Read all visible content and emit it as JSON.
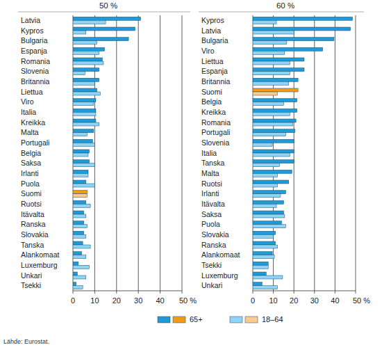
{
  "chart_data": [
    {
      "type": "bar",
      "title": "50 %",
      "orientation": "horizontal",
      "grid": true,
      "legend": "bottom",
      "categories": [
        "Latvia",
        "Kypros",
        "Bulgaria",
        "Espanja",
        "Romania",
        "Slovenia",
        "Britannia",
        "Liettua",
        "Viro",
        "Italia",
        "Kreikka",
        "Malta",
        "Portugali",
        "Belgia",
        "Saksa",
        "Irlanti",
        "Puola",
        "Suomi",
        "Ruotsi",
        "Itävalta",
        "Ranska",
        "Slovakia",
        "Tanska",
        "Alankomaat",
        "Luxemburg",
        "Unkari",
        "Tsekki"
      ],
      "series": [
        {
          "name": "65+",
          "color": "#1f9ad6",
          "colors": [
            "#1f9ad6",
            "#1f9ad6",
            "#1f9ad6",
            "#1f9ad6",
            "#1f9ad6",
            "#1f9ad6",
            "#1f9ad6",
            "#1f9ad6",
            "#1f9ad6",
            "#1f9ad6",
            "#1f9ad6",
            "#1f9ad6",
            "#1f9ad6",
            "#1f9ad6",
            "#1f9ad6",
            "#1f9ad6",
            "#1f9ad6",
            "#f39c12",
            "#1f9ad6",
            "#1f9ad6",
            "#1f9ad6",
            "#1f9ad6",
            "#1f9ad6",
            "#1f9ad6",
            "#1f9ad6",
            "#1f9ad6",
            "#1f9ad6"
          ],
          "values": [
            31,
            28.5,
            25.5,
            14.5,
            13.5,
            12,
            12,
            11,
            10.5,
            10.5,
            10.5,
            9.5,
            9,
            7.5,
            7.5,
            7,
            6,
            6.5,
            6,
            5,
            5,
            5,
            4.5,
            4,
            2.5,
            2,
            1.5
          ]
        },
        {
          "name": "18–64",
          "color": "#8fd4f5",
          "colors": [
            "#8fd4f5",
            "#8fd4f5",
            "#8fd4f5",
            "#8fd4f5",
            "#8fd4f5",
            "#8fd4f5",
            "#8fd4f5",
            "#8fd4f5",
            "#8fd4f5",
            "#8fd4f5",
            "#8fd4f5",
            "#8fd4f5",
            "#8fd4f5",
            "#8fd4f5",
            "#8fd4f5",
            "#8fd4f5",
            "#8fd4f5",
            "#fccb8f",
            "#8fd4f5",
            "#8fd4f5",
            "#8fd4f5",
            "#8fd4f5",
            "#8fd4f5",
            "#8fd4f5",
            "#8fd4f5",
            "#8fd4f5",
            "#8fd4f5"
          ],
          "values": [
            15,
            6,
            11,
            12,
            14,
            5.5,
            10,
            12.5,
            9.5,
            10.5,
            12,
            6.5,
            10,
            7,
            10,
            7,
            10,
            6.5,
            8,
            6,
            6.5,
            6,
            8,
            6,
            7.5,
            6,
            4.5
          ]
        }
      ],
      "xlim": [
        0,
        50
      ],
      "xticks": [
        0,
        10,
        20,
        30,
        40,
        {
          "value": 50,
          "label": "50 %"
        }
      ]
    },
    {
      "type": "bar",
      "title": "60 %",
      "orientation": "horizontal",
      "grid": true,
      "legend": "bottom",
      "categories": [
        "Kypros",
        "Latvia",
        "Bulgaria",
        "Viro",
        "Liettua",
        "Espanja",
        "Britannia",
        "Suomi",
        "Belgia",
        "Kreikka",
        "Romania",
        "Portugali",
        "Slovenia",
        "Italia",
        "Tanska",
        "Malta",
        "Ruotsi",
        "Irlanti",
        "Itävalta",
        "Saksa",
        "Puola",
        "Slovakia",
        "Ranska",
        "Alankomaat",
        "Tsekki",
        "Luxemburg",
        "Unkari"
      ],
      "series": [
        {
          "name": "65+",
          "color": "#1f9ad6",
          "colors": [
            "#1f9ad6",
            "#1f9ad6",
            "#1f9ad6",
            "#1f9ad6",
            "#1f9ad6",
            "#1f9ad6",
            "#1f9ad6",
            "#f39c12",
            "#1f9ad6",
            "#1f9ad6",
            "#1f9ad6",
            "#1f9ad6",
            "#1f9ad6",
            "#1f9ad6",
            "#1f9ad6",
            "#1f9ad6",
            "#1f9ad6",
            "#1f9ad6",
            "#1f9ad6",
            "#1f9ad6",
            "#1f9ad6",
            "#1f9ad6",
            "#1f9ad6",
            "#1f9ad6",
            "#1f9ad6",
            "#1f9ad6",
            "#1f9ad6"
          ],
          "values": [
            48.5,
            47.5,
            39.5,
            34,
            25,
            25,
            22,
            22,
            21.5,
            21.5,
            21,
            20.5,
            20,
            20,
            20,
            19,
            17.5,
            16,
            15,
            15,
            14,
            11,
            11,
            9.5,
            7.5,
            6.5,
            4.5
          ]
        },
        {
          "name": "18–64",
          "color": "#8fd4f5",
          "colors": [
            "#8fd4f5",
            "#8fd4f5",
            "#8fd4f5",
            "#8fd4f5",
            "#8fd4f5",
            "#8fd4f5",
            "#8fd4f5",
            "#fccb8f",
            "#8fd4f5",
            "#8fd4f5",
            "#8fd4f5",
            "#8fd4f5",
            "#8fd4f5",
            "#8fd4f5",
            "#8fd4f5",
            "#8fd4f5",
            "#8fd4f5",
            "#8fd4f5",
            "#8fd4f5",
            "#8fd4f5",
            "#8fd4f5",
            "#8fd4f5",
            "#8fd4f5",
            "#8fd4f5",
            "#8fd4f5",
            "#8fd4f5",
            "#8fd4f5"
          ],
          "values": [
            11.5,
            20,
            16.5,
            15.5,
            18,
            18,
            17.5,
            12,
            15,
            18,
            19.5,
            16,
            9.5,
            18,
            13,
            12,
            12,
            13.5,
            11.5,
            15.5,
            16,
            10,
            12,
            10.5,
            7.5,
            14.5,
            12
          ]
        }
      ],
      "xlim": [
        0,
        50
      ],
      "xticks": [
        0,
        10,
        20,
        30,
        40,
        {
          "value": 50,
          "label": "50 %"
        }
      ]
    }
  ],
  "source": "Lähde: Eurostat."
}
